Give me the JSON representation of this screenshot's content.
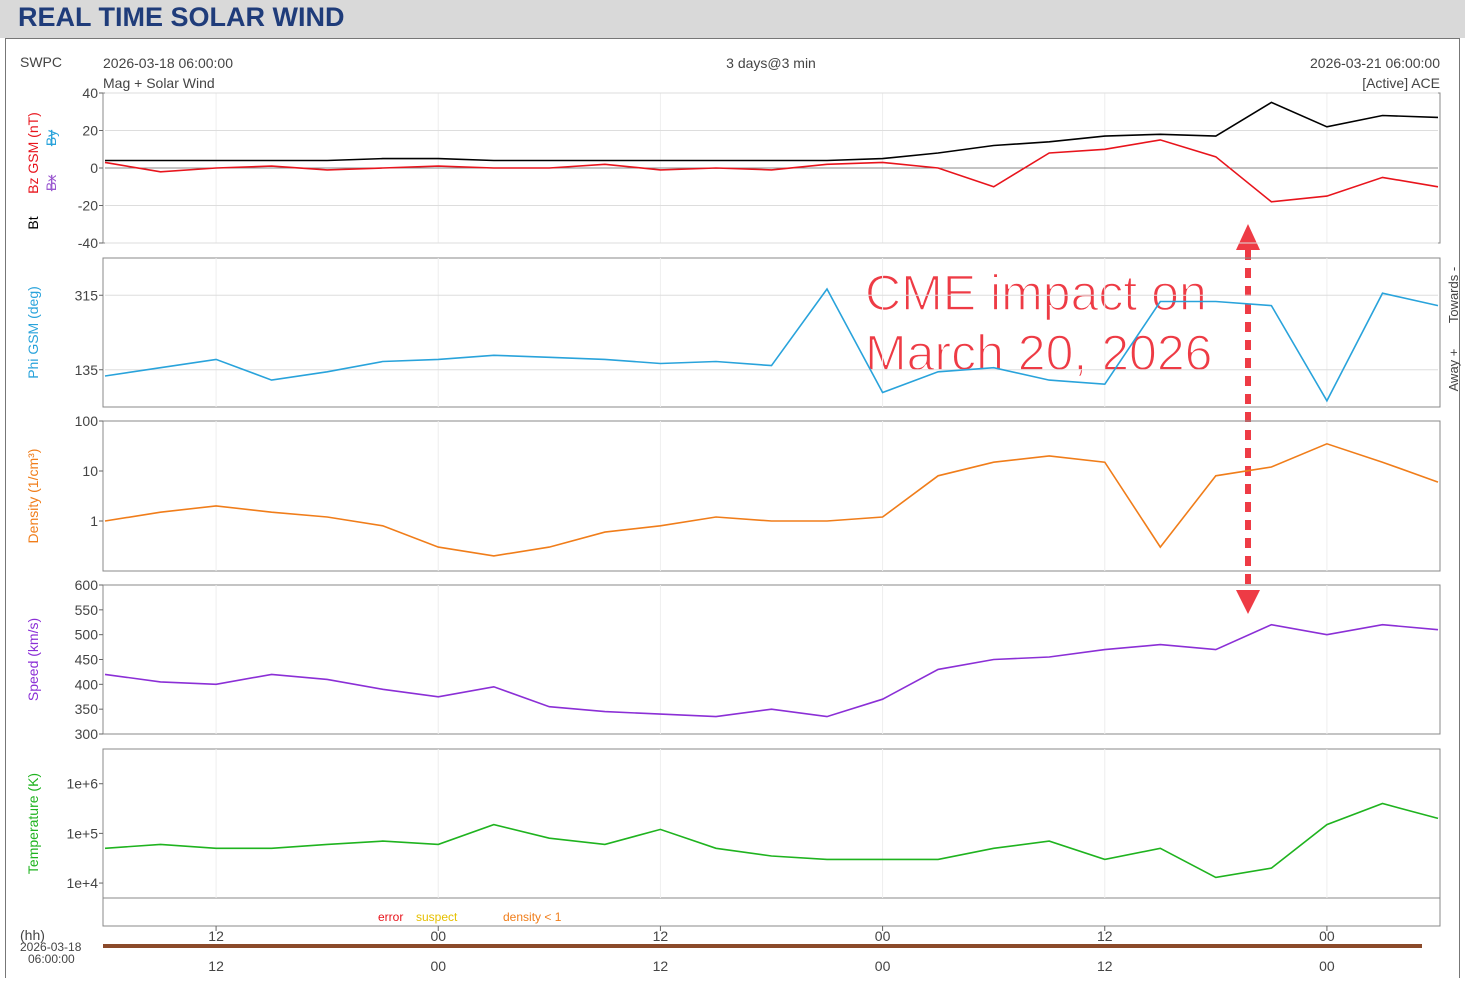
{
  "header": {
    "title": "REAL TIME SOLAR WIND"
  },
  "info": {
    "source": "SWPC",
    "start": "2026-03-18 06:00:00",
    "product": "Mag + Solar Wind",
    "span": "3 days@3 min",
    "end": "2026-03-21 06:00:00",
    "spacecraft": "[Active] ACE"
  },
  "chart_data": [
    {
      "type": "line",
      "grid": true,
      "log": false,
      "x": [
        0,
        3,
        6,
        9,
        12,
        15,
        18,
        21,
        24,
        27,
        30,
        33,
        36,
        39,
        42,
        45,
        48,
        51,
        54,
        57,
        60,
        63,
        66,
        69,
        72
      ],
      "xlim": [
        0,
        72
      ],
      "ylim": [
        -40,
        40
      ],
      "yticks": [
        -40,
        -20,
        0,
        20,
        40
      ],
      "series": [
        {
          "name": "Bt",
          "color": "#000000",
          "values": [
            4,
            4,
            4,
            4,
            4,
            5,
            5,
            4,
            4,
            4,
            4,
            4,
            4,
            4,
            5,
            8,
            12,
            14,
            17,
            18,
            17,
            35,
            22,
            28,
            27
          ]
        },
        {
          "name": "Bz GSM (nT)",
          "color": "#e8141c",
          "values": [
            3,
            -2,
            0,
            1,
            -1,
            0,
            1,
            0,
            0,
            2,
            -1,
            0,
            -1,
            2,
            3,
            0,
            -10,
            8,
            10,
            15,
            6,
            -18,
            -15,
            -5,
            -10
          ]
        }
      ],
      "other_labels": [
        {
          "text": "Bx",
          "color": "#9b59d0"
        },
        {
          "text": "By",
          "color": "#29a3db"
        }
      ]
    },
    {
      "type": "line",
      "grid": true,
      "log": false,
      "ylabel": "Phi GSM (deg)",
      "x": [
        0,
        3,
        6,
        9,
        12,
        15,
        18,
        21,
        24,
        27,
        30,
        33,
        36,
        39,
        42,
        45,
        48,
        51,
        54,
        57,
        60,
        63,
        66,
        69,
        72
      ],
      "xlim": [
        0,
        72
      ],
      "ylim": [
        45,
        405
      ],
      "yticks": [
        135,
        315
      ],
      "series": [
        {
          "name": "Phi GSM (deg)",
          "color": "#29a3db",
          "values": [
            120,
            140,
            160,
            110,
            130,
            155,
            160,
            170,
            165,
            160,
            150,
            155,
            145,
            330,
            80,
            130,
            140,
            110,
            100,
            300,
            300,
            290,
            60,
            320,
            290
          ]
        }
      ],
      "right_labels": [
        "Towards -",
        "Away +"
      ]
    },
    {
      "type": "line",
      "grid": false,
      "log": true,
      "ylabel": "Density (1/cm³)",
      "x": [
        0,
        3,
        6,
        9,
        12,
        15,
        18,
        21,
        24,
        27,
        30,
        33,
        36,
        39,
        42,
        45,
        48,
        51,
        54,
        57,
        60,
        63,
        66,
        69,
        72
      ],
      "xlim": [
        0,
        72
      ],
      "ylim": [
        0.1,
        100
      ],
      "yticks": [
        1,
        10,
        100
      ],
      "series": [
        {
          "name": "Density (1/cm³)",
          "color": "#f07d1a",
          "values": [
            1,
            1.5,
            2,
            1.5,
            1.2,
            0.8,
            0.3,
            0.2,
            0.3,
            0.6,
            0.8,
            1.2,
            1,
            1,
            1.2,
            8,
            15,
            20,
            15,
            0.3,
            8,
            12,
            35,
            15,
            6
          ]
        }
      ]
    },
    {
      "type": "line",
      "grid": false,
      "log": false,
      "ylabel": "Speed (km/s)",
      "x": [
        0,
        3,
        6,
        9,
        12,
        15,
        18,
        21,
        24,
        27,
        30,
        33,
        36,
        39,
        42,
        45,
        48,
        51,
        54,
        57,
        60,
        63,
        66,
        69,
        72
      ],
      "xlim": [
        0,
        72
      ],
      "ylim": [
        300,
        600
      ],
      "yticks": [
        300,
        350,
        400,
        450,
        500,
        550,
        600
      ],
      "series": [
        {
          "name": "Speed (km/s)",
          "color": "#8b2fd6",
          "values": [
            420,
            405,
            400,
            420,
            410,
            390,
            375,
            395,
            355,
            345,
            340,
            335,
            350,
            335,
            370,
            430,
            450,
            455,
            470,
            480,
            470,
            520,
            500,
            520,
            510
          ]
        }
      ]
    },
    {
      "type": "line",
      "grid": false,
      "log": true,
      "ylabel": "Temperature (K)",
      "x": [
        0,
        3,
        6,
        9,
        12,
        15,
        18,
        21,
        24,
        27,
        30,
        33,
        36,
        39,
        42,
        45,
        48,
        51,
        54,
        57,
        60,
        63,
        66,
        69,
        72
      ],
      "xlim": [
        0,
        72
      ],
      "ylim": [
        5000,
        5000000
      ],
      "yticks": [
        {
          "value": 10000,
          "label": "1e+4"
        },
        {
          "value": 100000,
          "label": "1e+5"
        },
        {
          "value": 1000000,
          "label": "1e+6"
        }
      ],
      "xticks": [
        {
          "value": 6,
          "label": "12"
        },
        {
          "value": 18,
          "label": "00"
        },
        {
          "value": 30,
          "label": "12"
        },
        {
          "value": 42,
          "label": "00"
        },
        {
          "value": 54,
          "label": "12"
        },
        {
          "value": 66,
          "label": "00"
        }
      ],
      "series": [
        {
          "name": "Temperature (K)",
          "color": "#1fb31f",
          "values": [
            50000,
            60000,
            50000,
            50000,
            60000,
            70000,
            60000,
            150000,
            80000,
            60000,
            120000,
            50000,
            35000,
            30000,
            30000,
            30000,
            50000,
            70000,
            30000,
            50000,
            13000,
            20000,
            150000,
            400000,
            200000
          ]
        }
      ]
    }
  ],
  "flags_legend": [
    {
      "text": "error",
      "color": "#e8141c"
    },
    {
      "text": "suspect",
      "color": "#e6c000"
    },
    {
      "text": "density < 1",
      "color": "#f07d1a"
    }
  ],
  "time_axis": {
    "unit": "(hh)",
    "date": "2026-03-18",
    "time": "06:00:00"
  },
  "annotation": {
    "lines": [
      "CME impact on",
      "March 20, 2026"
    ]
  }
}
